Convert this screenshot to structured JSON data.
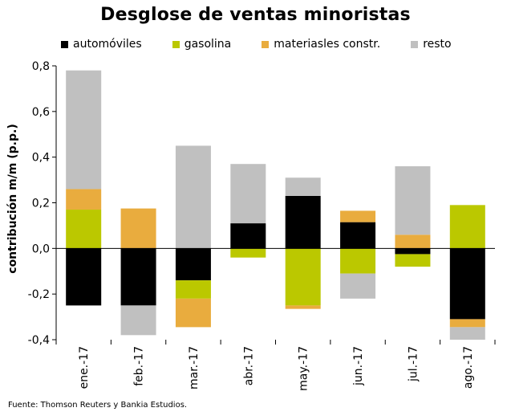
{
  "chart_data": {
    "type": "bar",
    "stacked": true,
    "title": "Desglose de ventas minoristas",
    "ylabel": "contribución m/m (p.p.)",
    "xlabel": "",
    "ylim": [
      -0.4,
      0.8
    ],
    "yticks": [
      "0,8",
      "0,6",
      "0,4",
      "0,2",
      "0,0",
      "-0,2",
      "-0,4"
    ],
    "ytick_values": [
      0.8,
      0.6,
      0.4,
      0.2,
      0.0,
      -0.2,
      -0.4
    ],
    "categories": [
      "ene.-17",
      "feb.-17",
      "mar.-17",
      "abr.-17",
      "may.-17",
      "jun.-17",
      "jul.-17",
      "ago.-17"
    ],
    "series": [
      {
        "name": "automóviles",
        "color": "#000000",
        "values": [
          -0.25,
          -0.25,
          -0.14,
          0.11,
          0.23,
          0.115,
          -0.025,
          -0.31
        ]
      },
      {
        "name": "gasolina",
        "color": "#bbc800",
        "values": [
          0.17,
          0.0,
          -0.08,
          -0.04,
          -0.25,
          -0.11,
          -0.055,
          0.19
        ]
      },
      {
        "name": "materiasles constr.",
        "color": "#e9ac3e",
        "values": [
          0.09,
          0.175,
          -0.125,
          0.0,
          -0.015,
          0.05,
          0.06,
          -0.035
        ]
      },
      {
        "name": "resto",
        "color": "#c0c0c0",
        "values": [
          0.52,
          -0.13,
          0.45,
          0.26,
          0.08,
          -0.11,
          0.3,
          -0.055
        ]
      }
    ]
  },
  "source": "Fuente: Thomson Reuters y Bankia Estudios."
}
